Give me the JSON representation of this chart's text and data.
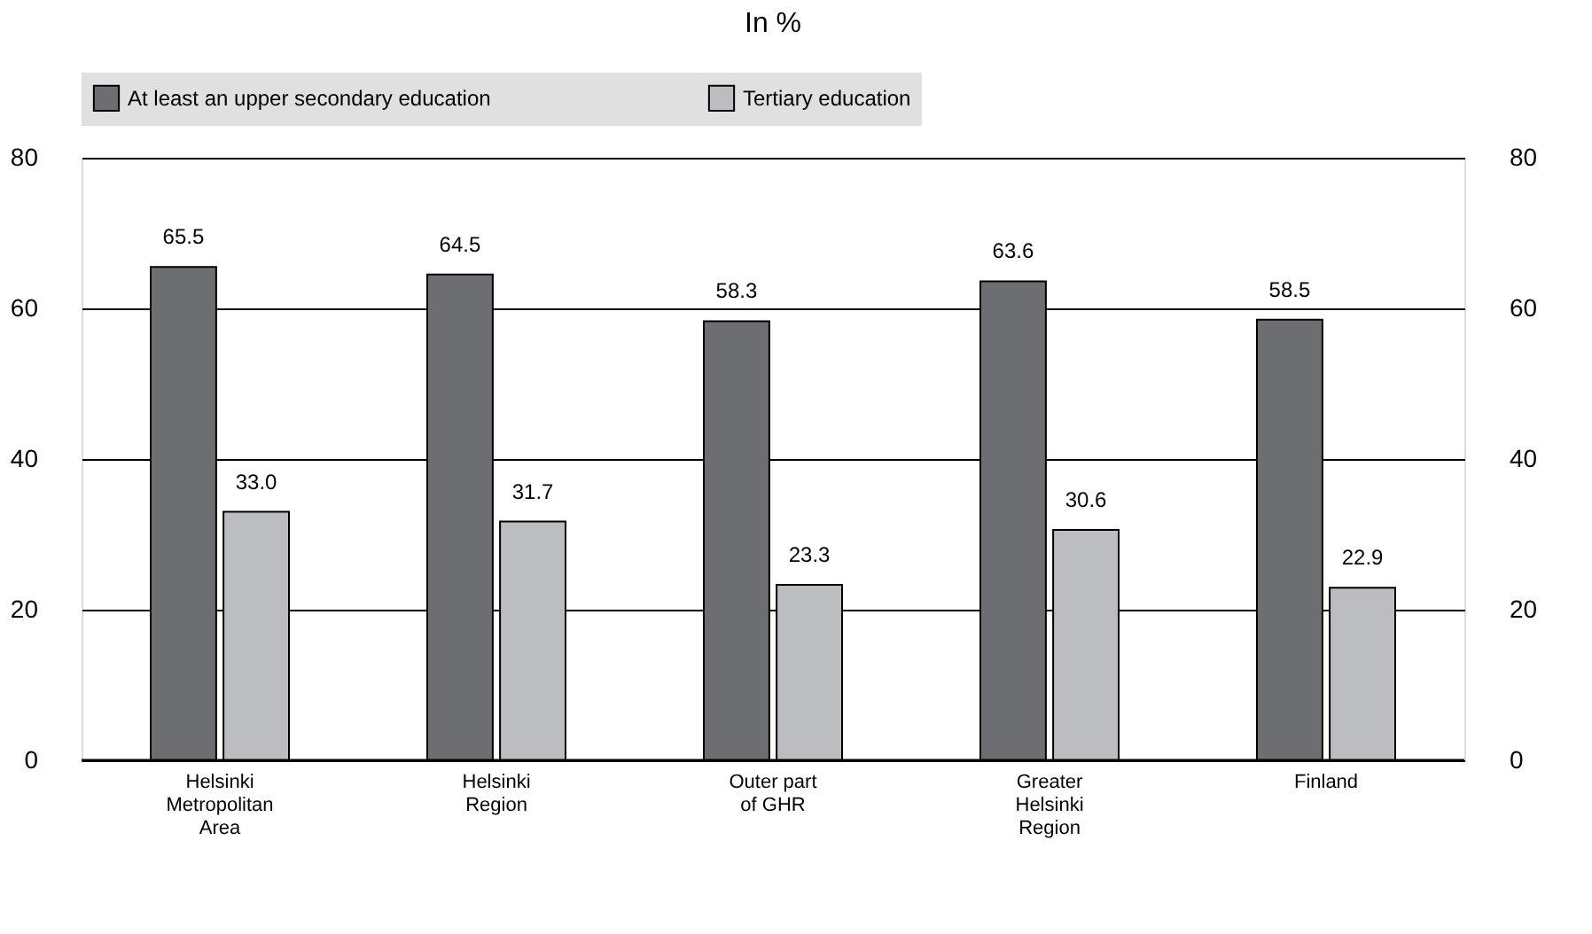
{
  "chart_data": {
    "type": "bar",
    "title": "In %",
    "categories": [
      "Helsinki Metropolitan Area",
      "Helsinki Region",
      "Outer part of GHR",
      "Greater Helsinki Region",
      "Finland"
    ],
    "series": [
      {
        "name": "At least an upper secondary education",
        "color": "#6d6e71",
        "values": [
          65.5,
          64.5,
          58.3,
          63.6,
          58.5
        ],
        "value_labels": [
          "65.5",
          "64.5",
          "58.3",
          "63.6",
          "58.5"
        ]
      },
      {
        "name": "Tertiary education",
        "color": "#bcbdc0",
        "values": [
          33.0,
          31.7,
          23.3,
          30.6,
          22.9
        ],
        "value_labels": [
          "33.0",
          "31.7",
          "23.3",
          "30.6",
          "22.9"
        ]
      }
    ],
    "ylim": [
      0,
      80
    ],
    "yticks": [
      0,
      20,
      40,
      60,
      80
    ],
    "y2lim": [
      0,
      80
    ],
    "y2ticks": [
      0,
      20,
      40,
      60,
      80
    ],
    "grid": "y",
    "legend": "top"
  }
}
